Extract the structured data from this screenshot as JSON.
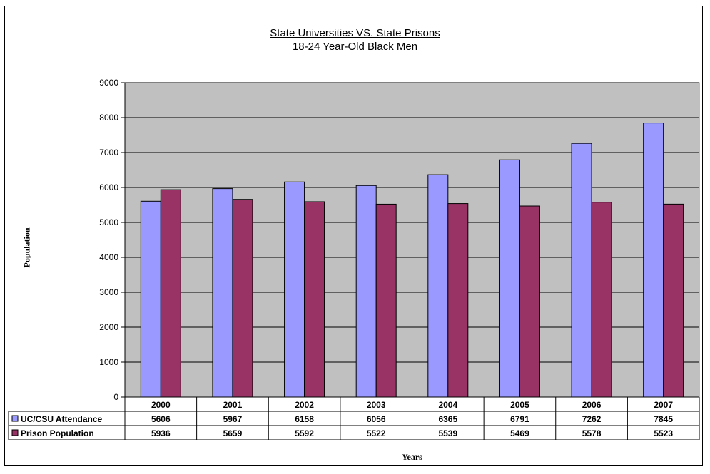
{
  "chart_data": {
    "type": "bar",
    "title": "State Universities VS. State Prisons",
    "subtitle": "18-24 Year-Old Black Men",
    "xlabel": "Years",
    "ylabel": "Population",
    "categories": [
      "2000",
      "2001",
      "2002",
      "2003",
      "2004",
      "2005",
      "2006",
      "2007"
    ],
    "series": [
      {
        "name": "UC/CSU Attendance",
        "color": "#9999ff",
        "values": [
          5606,
          5967,
          6158,
          6056,
          6365,
          6791,
          7262,
          7845
        ]
      },
      {
        "name": "Prison Population",
        "color": "#993366",
        "values": [
          5936,
          5659,
          5592,
          5522,
          5539,
          5469,
          5578,
          5523
        ]
      }
    ],
    "ylim": [
      0,
      9000
    ],
    "yticks": [
      0,
      1000,
      2000,
      3000,
      4000,
      5000,
      6000,
      7000,
      8000,
      9000
    ],
    "grid": true,
    "plot_background": "#c0c0c0",
    "legend": "data-table"
  }
}
